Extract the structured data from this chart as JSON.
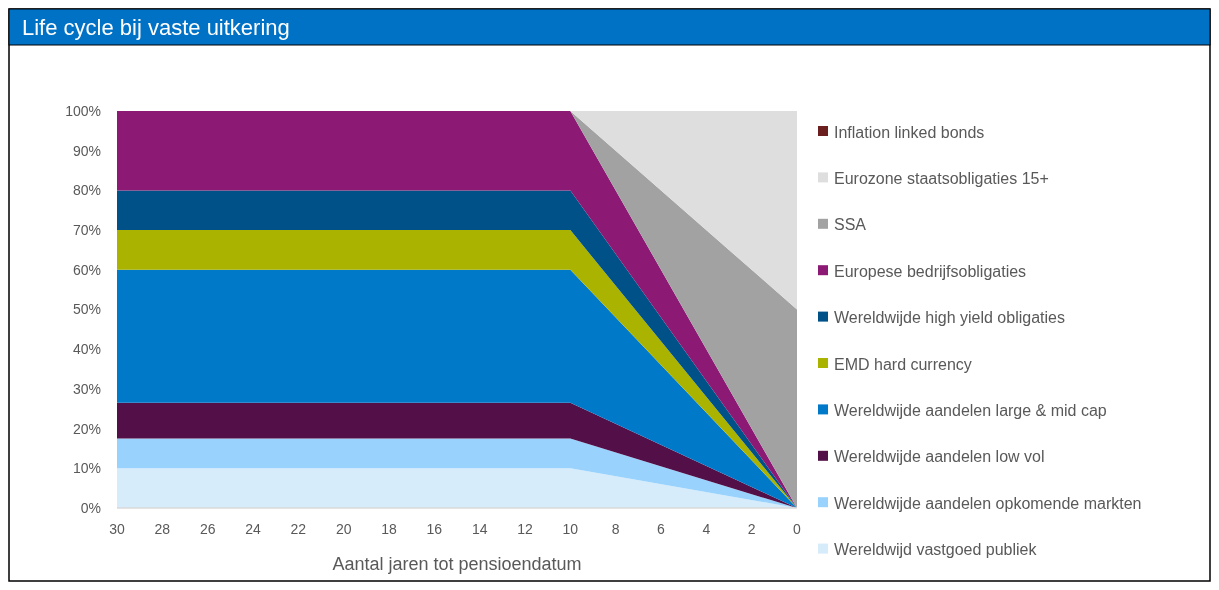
{
  "chart_data": {
    "type": "area",
    "stacked": true,
    "title": "Life cycle bij vaste uitkering",
    "xlabel": "Aantal jaren tot pensioendatum",
    "x": [
      30,
      10,
      0
    ],
    "xlim": [
      30,
      0
    ],
    "xticks": [
      30,
      28,
      26,
      24,
      22,
      20,
      18,
      16,
      14,
      12,
      10,
      8,
      6,
      4,
      2,
      0
    ],
    "ylim": [
      0,
      100
    ],
    "yticks": [
      {
        "value": 0,
        "label": "0%"
      },
      {
        "value": 10,
        "label": "10%"
      },
      {
        "value": 20,
        "label": "20%"
      },
      {
        "value": 30,
        "label": "30%"
      },
      {
        "value": 40,
        "label": "40%"
      },
      {
        "value": 50,
        "label": "50%"
      },
      {
        "value": 60,
        "label": "60%"
      },
      {
        "value": 70,
        "label": "70%"
      },
      {
        "value": 80,
        "label": "80%"
      },
      {
        "value": 90,
        "label": "90%"
      },
      {
        "value": 100,
        "label": "100%"
      }
    ],
    "grid": false,
    "legend": "right",
    "series": [
      {
        "name": "Wereldwijd vastgoed publiek",
        "color": "#d6ecfb",
        "values": [
          10,
          10,
          0
        ]
      },
      {
        "name": "Wereldwijde aandelen opkomende markten",
        "color": "#99d3fd",
        "values": [
          7.5,
          7.5,
          0
        ]
      },
      {
        "name": "Wereldwijde aandelen low vol",
        "color": "#530f47",
        "values": [
          9,
          9,
          0
        ]
      },
      {
        "name": "Wereldwijde aandelen large & mid cap",
        "color": "#0079c9",
        "values": [
          33.5,
          33.5,
          0
        ]
      },
      {
        "name": "EMD hard currency",
        "color": "#aab400",
        "values": [
          10,
          10,
          0
        ]
      },
      {
        "name": "Wereldwijde high yield obligaties",
        "color": "#005187",
        "values": [
          10,
          10,
          0
        ]
      },
      {
        "name": "Europese bedrijfsobligaties",
        "color": "#8c1a75",
        "values": [
          20,
          20,
          0
        ]
      },
      {
        "name": "SSA",
        "color": "#a2a2a2",
        "values": [
          null,
          0,
          50
        ]
      },
      {
        "name": "Eurozone staatsobligaties 15+",
        "color": "#dedede",
        "values": [
          0,
          0,
          50
        ]
      },
      {
        "name": "Inflation linked bonds",
        "color": "#6b1f1f",
        "values": [
          null,
          null,
          null
        ]
      }
    ]
  }
}
